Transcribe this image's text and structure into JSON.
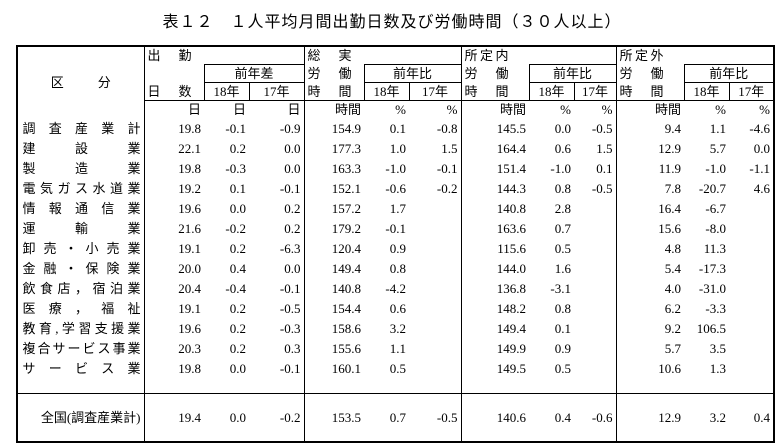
{
  "title": "表１２　１人平均月間出勤日数及び労働時間（３０人以上）",
  "header": {
    "stub": "区分",
    "groups": [
      {
        "top": "出勤",
        "bottom": "日数",
        "change": "前年差",
        "years": [
          "18年",
          "17年"
        ],
        "units": [
          "日",
          "日",
          "日"
        ]
      },
      {
        "top": "総実",
        "middle": "労働",
        "bottom": "時間",
        "change": "前年比",
        "years": [
          "18年",
          "17年"
        ],
        "units": [
          "時間",
          "%",
          "%"
        ]
      },
      {
        "top": "所定内",
        "middle": "労働",
        "bottom": "時間",
        "change": "前年比",
        "years": [
          "18年",
          "17年"
        ],
        "units": [
          "時間",
          "%",
          "%"
        ]
      },
      {
        "top": "所定外",
        "middle": "労働",
        "bottom": "時間",
        "change": "前年比",
        "years": [
          "18年",
          "17年"
        ],
        "units": [
          "時間",
          "%",
          "%"
        ]
      }
    ]
  },
  "table": {
    "rows": [
      {
        "label": "調査産業計",
        "cells": [
          "19.8",
          "-0.1",
          "-0.9",
          "154.9",
          "0.1",
          "-0.8",
          "145.5",
          "0.0",
          "-0.5",
          "9.4",
          "1.1",
          "-4.6"
        ]
      },
      {
        "label": "建設業",
        "cells": [
          "22.1",
          "0.2",
          "0.0",
          "177.3",
          "1.0",
          "1.5",
          "164.4",
          "0.6",
          "1.5",
          "12.9",
          "5.7",
          "0.0"
        ]
      },
      {
        "label": "製造業",
        "cells": [
          "19.8",
          "-0.3",
          "0.0",
          "163.3",
          "-1.0",
          "-0.1",
          "151.4",
          "-1.0",
          "0.1",
          "11.9",
          "-1.0",
          "-1.1"
        ]
      },
      {
        "label": "電気ガス水道業",
        "cells": [
          "19.2",
          "0.1",
          "-0.1",
          "152.1",
          "-0.6",
          "-0.2",
          "144.3",
          "0.8",
          "-0.5",
          "7.8",
          "-20.7",
          "4.6"
        ]
      },
      {
        "label": "情報通信業",
        "cells": [
          "19.6",
          "0.0",
          "0.2",
          "157.2",
          "1.7",
          null,
          "140.8",
          "2.8",
          null,
          "16.4",
          "-6.7",
          null
        ]
      },
      {
        "label": "運輸業",
        "cells": [
          "21.6",
          "-0.2",
          "0.2",
          "179.2",
          "-0.1",
          null,
          "163.6",
          "0.7",
          null,
          "15.6",
          "-8.0",
          null
        ]
      },
      {
        "label": "卸売・小売業",
        "cells": [
          "19.1",
          "0.2",
          "-6.3",
          "120.4",
          "0.9",
          null,
          "115.6",
          "0.5",
          null,
          "4.8",
          "11.3",
          null
        ]
      },
      {
        "label": "金融・保険業",
        "cells": [
          "20.0",
          "0.4",
          "0.0",
          "149.4",
          "0.8",
          null,
          "144.0",
          "1.6",
          null,
          "5.4",
          "-17.3",
          null
        ]
      },
      {
        "label": "飲食店，宿泊業",
        "cells": [
          "20.4",
          "-0.4",
          "-0.1",
          "140.8",
          "-4.2",
          null,
          "136.8",
          "-3.1",
          null,
          "4.0",
          "-31.0",
          null
        ]
      },
      {
        "label": "医療，福祉",
        "cells": [
          "19.1",
          "0.2",
          "-0.5",
          "154.4",
          "0.6",
          null,
          "148.2",
          "0.8",
          null,
          "6.2",
          "-3.3",
          null
        ]
      },
      {
        "label": "教育,学習支援業",
        "cells": [
          "19.6",
          "0.2",
          "-0.3",
          "158.6",
          "3.2",
          null,
          "149.4",
          "0.1",
          null,
          "9.2",
          "106.5",
          null
        ]
      },
      {
        "label": "複合サービス事業",
        "cells": [
          "20.3",
          "0.2",
          "0.3",
          "155.6",
          "1.1",
          null,
          "149.9",
          "0.9",
          null,
          "5.7",
          "3.5",
          null
        ]
      },
      {
        "label": "サービス業",
        "cells": [
          "19.8",
          "0.0",
          "-0.1",
          "160.1",
          "0.5",
          null,
          "149.5",
          "0.5",
          null,
          "10.6",
          "1.3",
          null
        ]
      }
    ],
    "total": {
      "label": "全国(調査産業計)",
      "cells": [
        "19.4",
        "0.0",
        "-0.2",
        "153.5",
        "0.7",
        "-0.5",
        "140.6",
        "0.4",
        "-0.6",
        "12.9",
        "3.2",
        "0.4"
      ]
    }
  }
}
